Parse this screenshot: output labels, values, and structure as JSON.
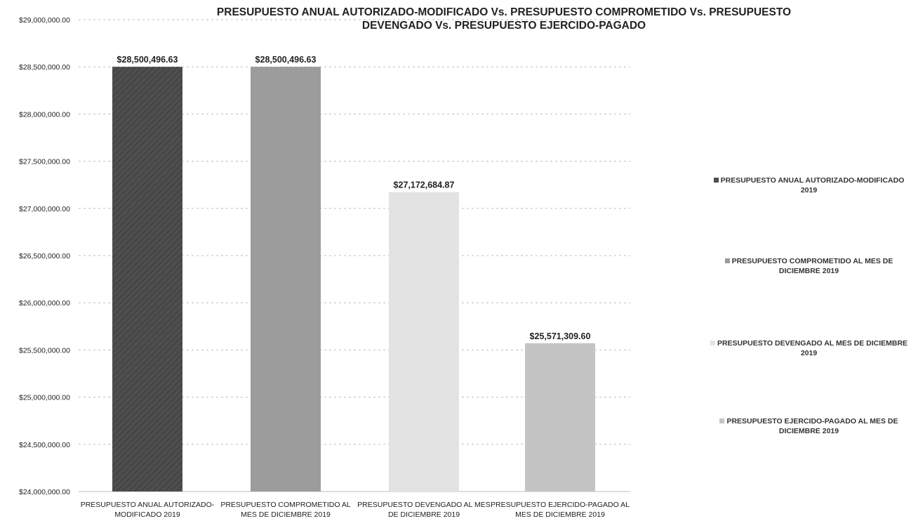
{
  "chart_data": {
    "type": "bar",
    "title": "PRESUPUESTO ANUAL AUTORIZADO-MODIFICADO Vs. PRESUPUESTO COMPROMETIDO Vs. PRESUPUESTO DEVENGADO Vs. PRESUPUESTO EJERCIDO-PAGADO",
    "categories": [
      "PRESUPUESTO ANUAL AUTORIZADO-MODIFICADO 2019",
      "PRESUPUESTO COMPROMETIDO AL MES DE DICIEMBRE 2019",
      "PRESUPUESTO DEVENGADO AL MES DE DICIEMBRE 2019",
      "PRESUPUESTO EJERCIDO-PAGADO AL MES DE DICIEMBRE 2019"
    ],
    "values": [
      28500496.63,
      28500496.63,
      27172684.87,
      25571309.6
    ],
    "data_labels": [
      "$28,500,496.63",
      "$28,500,496.63",
      "$27,172,684.87",
      "$25,571,309.60"
    ],
    "colors": [
      "#4e4e4e",
      "#9c9c9c",
      "#e3e3e3",
      "#c4c4c4"
    ],
    "ylim": [
      24000000,
      29000000
    ],
    "yticks": [
      24000000,
      24500000,
      25000000,
      25500000,
      26000000,
      26500000,
      27000000,
      27500000,
      28000000,
      28500000,
      29000000
    ],
    "ytick_labels": [
      "$24,000,000.00",
      "$24,500,000.00",
      "$25,000,000.00",
      "$25,500,000.00",
      "$26,000,000.00",
      "$26,500,000.00",
      "$27,000,000.00",
      "$27,500,000.00",
      "$28,000,000.00",
      "$28,500,000.00",
      "$29,000,000.00"
    ],
    "xlabel": "",
    "ylabel": "",
    "grid": true,
    "legend": {
      "placement": "right",
      "entries": [
        "PRESUPUESTO ANUAL AUTORIZADO-MODIFICADO 2019",
        "PRESUPUESTO COMPROMETIDO AL MES DE DICIEMBRE 2019",
        "PRESUPUESTO DEVENGADO AL MES DE DICIEMBRE 2019",
        "PRESUPUESTO EJERCIDO-PAGADO AL MES DE DICIEMBRE 2019"
      ]
    }
  }
}
